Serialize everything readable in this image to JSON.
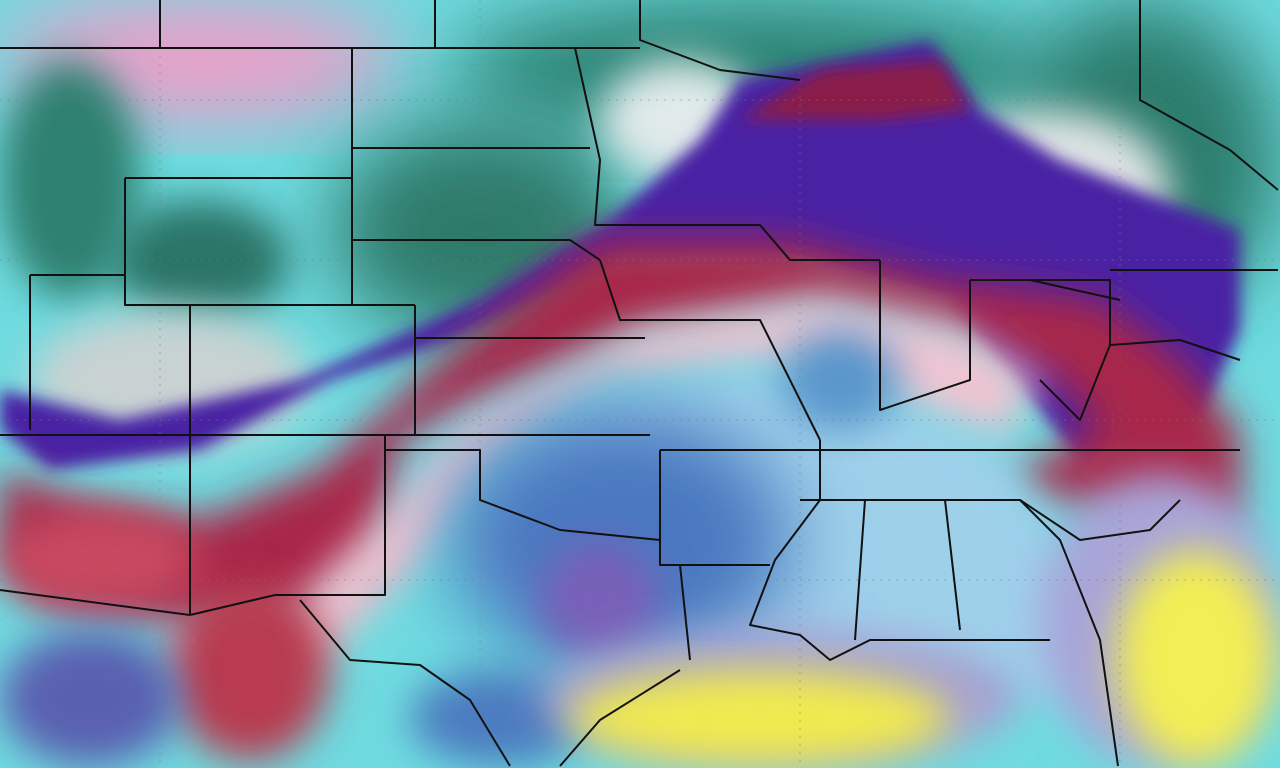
{
  "map": {
    "kind": "temperature-anomaly-weather-map",
    "region": "contiguous-united-states",
    "colors": {
      "cyan": "#7fe6ea",
      "pink": "#f08cc0",
      "teal": "#1f6e62",
      "gray_white": "#d8dede",
      "purple": "#4a1fa0",
      "dark_red": "#8e1b3c",
      "red": "#c8506a",
      "light_pink": "#f2c8d4",
      "light_blue": "#a8d8ec",
      "blue": "#4a86c4",
      "violet_blue": "#5a5ab8",
      "yellow": "#f2ee50",
      "lavender": "#b8b0d8",
      "border": "#111111"
    }
  }
}
